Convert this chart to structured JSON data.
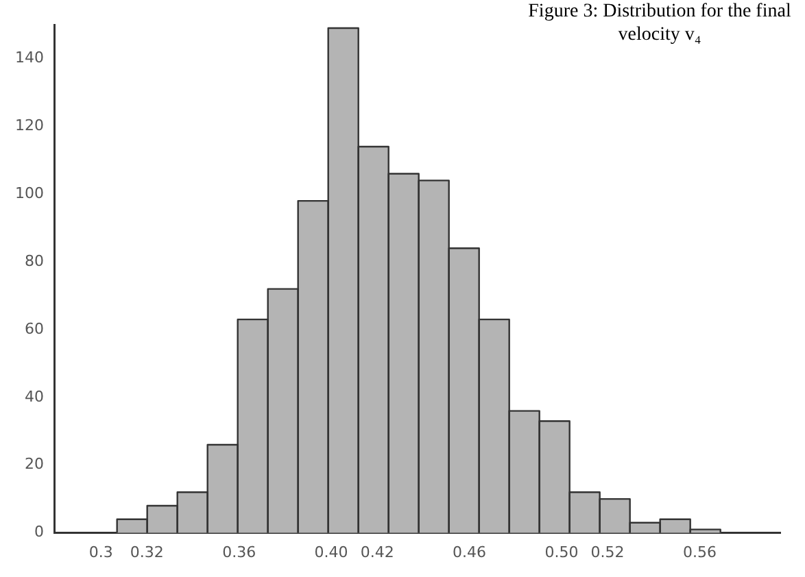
{
  "chart_data": {
    "type": "histogram",
    "title": "Figure 3: Distribution for the final velocity v₄",
    "bins": [
      0.307,
      0.3201,
      0.3332,
      0.3463,
      0.3594,
      0.3725,
      0.3856,
      0.3987,
      0.4118,
      0.4249,
      0.438,
      0.4511,
      0.4642,
      0.4773,
      0.4904,
      0.5035,
      0.5166,
      0.5297,
      0.5428,
      0.5559,
      0.569
    ],
    "values": [
      4,
      8,
      12,
      26,
      63,
      72,
      98,
      149,
      114,
      106,
      104,
      84,
      63,
      36,
      33,
      12,
      10,
      3,
      4,
      1
    ],
    "color": "#b4b4b4",
    "xlim": [
      0.28,
      0.595
    ],
    "xticks": [
      0.3,
      0.32,
      0.36,
      {
        "value": 0.4,
        "label": "0.40"
      },
      0.42,
      0.46,
      {
        "value": 0.5,
        "label": "0.50"
      },
      0.52,
      0.56
    ],
    "ylim": [
      0,
      150
    ],
    "yticks": [
      0,
      20,
      40,
      60,
      80,
      100,
      120,
      140
    ],
    "grid": false,
    "legend": false
  }
}
